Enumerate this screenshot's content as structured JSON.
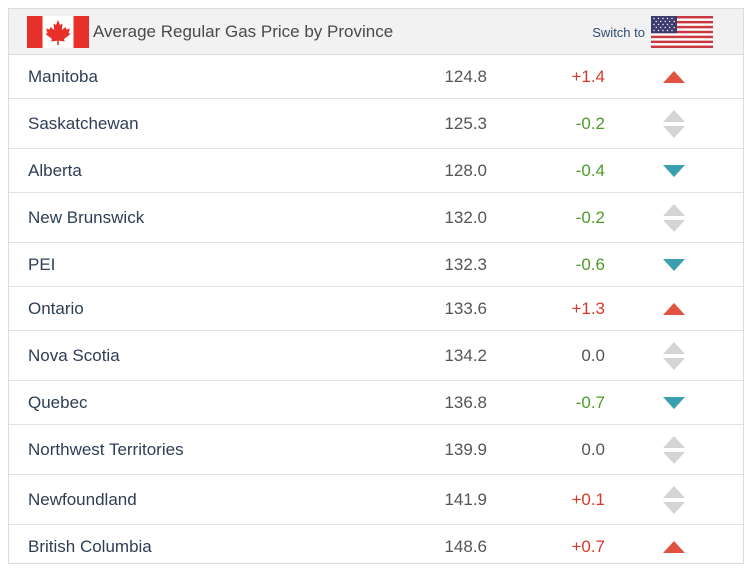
{
  "header": {
    "title": "Average Regular Gas Price by Province",
    "switch_label": "Switch to",
    "country_flag_icon": "canada-flag-icon",
    "switch_flag_icon": "usa-flag-icon"
  },
  "colors": {
    "up": "#e0533f",
    "down": "#3aa0ae",
    "neutral": "#d4d4d4",
    "positive_text": "#d9392c",
    "negative_text": "#4e9a2a"
  },
  "rows": [
    {
      "province": "Manitoba",
      "price": "124.8",
      "change": "+1.4",
      "trend": "up"
    },
    {
      "province": "Saskatchewan",
      "price": "125.3",
      "change": "-0.2",
      "trend": "neutral"
    },
    {
      "province": "Alberta",
      "price": "128.0",
      "change": "-0.4",
      "trend": "down"
    },
    {
      "province": "New Brunswick",
      "price": "132.0",
      "change": "-0.2",
      "trend": "neutral"
    },
    {
      "province": "PEI",
      "price": "132.3",
      "change": "-0.6",
      "trend": "down"
    },
    {
      "province": "Ontario",
      "price": "133.6",
      "change": "+1.3",
      "trend": "up"
    },
    {
      "province": "Nova Scotia",
      "price": "134.2",
      "change": "0.0",
      "trend": "neutral"
    },
    {
      "province": "Quebec",
      "price": "136.8",
      "change": "-0.7",
      "trend": "down"
    },
    {
      "province": "Northwest Territories",
      "price": "139.9",
      "change": "0.0",
      "trend": "neutral"
    },
    {
      "province": "Newfoundland",
      "price": "141.9",
      "change": "+0.1",
      "trend": "neutral"
    },
    {
      "province": "British Columbia",
      "price": "148.6",
      "change": "+0.7",
      "trend": "up"
    }
  ]
}
